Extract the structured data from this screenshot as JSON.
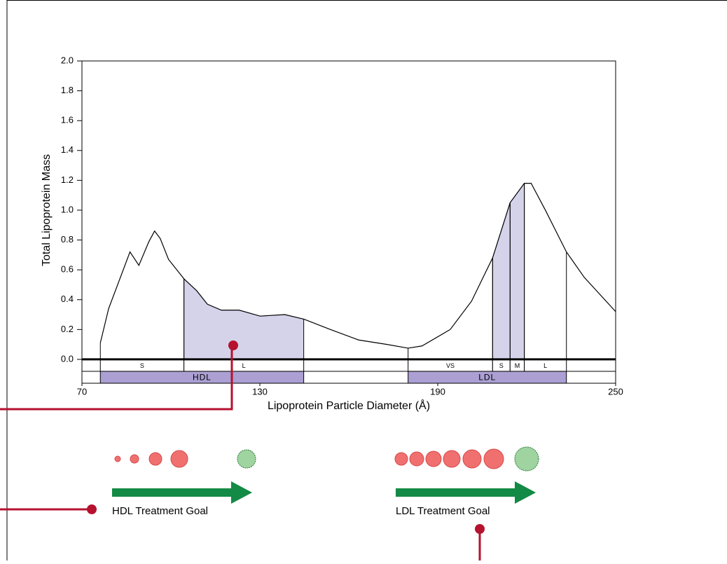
{
  "chart_data": {
    "type": "line",
    "ylabel": "Total Lipoprotein Mass",
    "xlabel": "Lipoprotein Particle Diameter (Å)",
    "xlim": [
      70,
      250
    ],
    "xticks": [
      70,
      130,
      190,
      250
    ],
    "ylim": [
      -0.16,
      2.0
    ],
    "yticks": [
      {
        "value": 0,
        "label": "0.0"
      },
      0.2,
      0.4,
      0.6,
      0.8,
      {
        "value": 1,
        "label": "1.0"
      },
      1.2,
      1.4,
      1.6,
      1.8,
      {
        "value": 2,
        "label": "2.0"
      }
    ],
    "series": [
      {
        "color": "#000000",
        "x": [
          76.2,
          79.0,
          82.6,
          86.2,
          89.2,
          92.6,
          94.5,
          96.4,
          99.2,
          104.4,
          108.7,
          112.3,
          117.0,
          123.0,
          130.1,
          138.4,
          144.8,
          153.8,
          163.3,
          172.9,
          180.0,
          184.7,
          194.2,
          201.4,
          208.5,
          214.4,
          219.2,
          221.5,
          226.3,
          233.4,
          239.4,
          250.0
        ],
        "values": [
          0.11,
          0.34,
          0.53,
          0.72,
          0.63,
          0.79,
          0.86,
          0.81,
          0.67,
          0.54,
          0.46,
          0.37,
          0.33,
          0.33,
          0.29,
          0.3,
          0.27,
          0.2,
          0.13,
          0.1,
          0.075,
          0.09,
          0.2,
          0.39,
          0.68,
          1.05,
          1.18,
          1.18,
          1.0,
          0.72,
          0.55,
          0.32
        ]
      }
    ],
    "highlight_color": "#d5d3ea",
    "highlights": [
      {
        "start": 104.4,
        "end": 144.8
      },
      {
        "start": 208.5,
        "end": 219.2
      }
    ],
    "subclasses": [
      {
        "label": "S",
        "start": 76.2,
        "end": 104.4
      },
      {
        "label": "L",
        "start": 104.4,
        "end": 144.8
      },
      {
        "label": "VS",
        "start": 180.0,
        "end": 208.5
      },
      {
        "label": "S",
        "start": 208.5,
        "end": 214.4
      },
      {
        "label": "M",
        "start": 214.4,
        "end": 219.2
      },
      {
        "label": "L",
        "start": 219.2,
        "end": 233.4
      }
    ],
    "class_color": "#ab9fd3",
    "classes": [
      {
        "label": "HDL",
        "start": 76.2,
        "end": 144.8
      },
      {
        "label": "LDL",
        "start": 180.0,
        "end": 233.4
      }
    ],
    "annotations": [
      "HDL Treatment Goal",
      "LDL Treatment Goal"
    ]
  }
}
